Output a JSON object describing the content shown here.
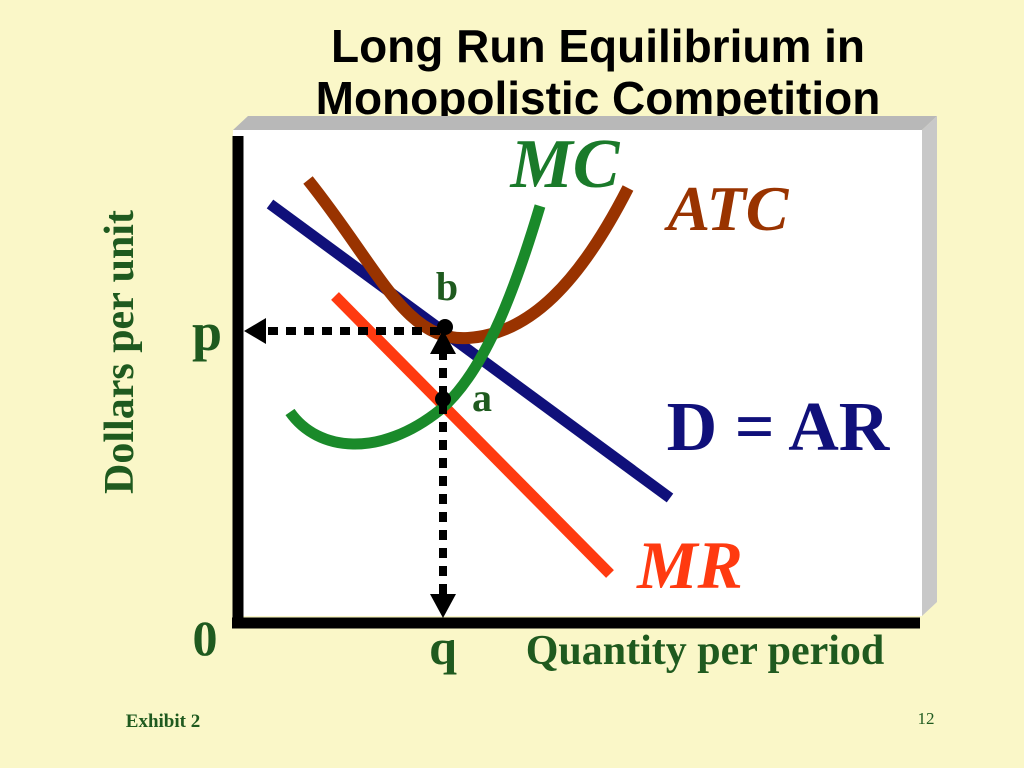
{
  "title": [
    "Long Run Equilibrium in",
    "Monopolistic Competition"
  ],
  "y_axis_label": "Dollars per unit",
  "x_axis_label": "Quantity per period",
  "origin_label": "0",
  "price_label": "p",
  "quantity_label": "q",
  "curves": {
    "mc": "MC",
    "atc": "ATC",
    "demand": "D = AR",
    "mr": "MR"
  },
  "points": {
    "b": "b",
    "a": "a"
  },
  "footer": {
    "exhibit": "Exhibit 2",
    "page": "12"
  }
}
